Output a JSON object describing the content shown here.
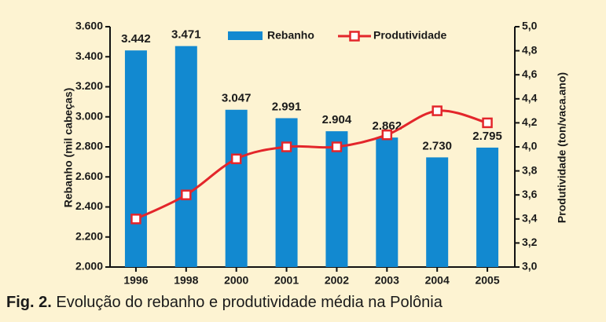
{
  "chart_data": {
    "type": "bar_line",
    "categories": [
      "1996",
      "1998",
      "2000",
      "2001",
      "2002",
      "2003",
      "2004",
      "2005"
    ],
    "series": [
      {
        "name": "Rebanho",
        "color": "#1289d0",
        "values": [
          3442,
          3471,
          3047,
          2991,
          2904,
          2862,
          2730,
          2795
        ],
        "value_labels": [
          "3.442",
          "3.471",
          "3.047",
          "2.991",
          "2.904",
          "2.862",
          "2.730",
          "2.795"
        ]
      },
      {
        "name": "Produtividade",
        "color": "#e3262b",
        "axis": "y2",
        "values": [
          3.4,
          3.6,
          3.9,
          4.0,
          4.0,
          4.1,
          4.3,
          4.2
        ]
      }
    ],
    "ylabel": "Rebanho (mil cabeças)",
    "y2label": "Produtividade (ton/vaca.ano)",
    "ylim": [
      2000,
      3600
    ],
    "yticks": [
      {
        "value": 2000,
        "label": "2.000"
      },
      {
        "value": 2200,
        "label": "2.200"
      },
      {
        "value": 2400,
        "label": "2.400"
      },
      {
        "value": 2600,
        "label": "2.600"
      },
      {
        "value": 2800,
        "label": "2.800"
      },
      {
        "value": 3000,
        "label": "3.000"
      },
      {
        "value": 3200,
        "label": "3.200"
      },
      {
        "value": 3400,
        "label": "3.400"
      },
      {
        "value": 3600,
        "label": "3.600"
      }
    ],
    "y2lim": [
      3.0,
      5.0
    ],
    "y2ticks": [
      {
        "value": 3.0,
        "label": "3,0"
      },
      {
        "value": 3.2,
        "label": "3,2"
      },
      {
        "value": 3.4,
        "label": "3,4"
      },
      {
        "value": 3.6,
        "label": "3,6"
      },
      {
        "value": 3.8,
        "label": "3,8"
      },
      {
        "value": 4.0,
        "label": "4,0"
      },
      {
        "value": 4.2,
        "label": "4,2"
      },
      {
        "value": 4.4,
        "label": "4,4"
      },
      {
        "value": 4.6,
        "label": "4,6"
      },
      {
        "value": 4.8,
        "label": "4,8"
      },
      {
        "value": 5.0,
        "label": "5,0"
      }
    ],
    "caption_label": "Fig. 2.",
    "caption_text": "Evolução do rebanho e produtividade média na Polônia"
  }
}
